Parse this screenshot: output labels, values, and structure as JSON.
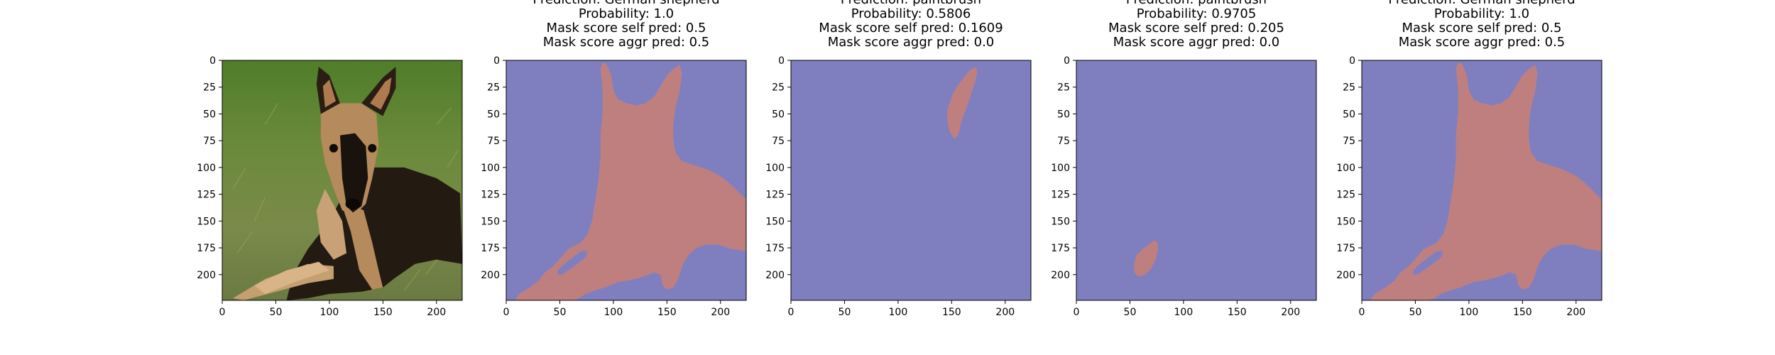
{
  "figure": {
    "background": "#ffffff",
    "mask_background_color": "#7f7fbf",
    "mask_object_color": "#bf7f7f"
  },
  "chart_data": [
    {
      "type": "image",
      "content": "photo",
      "image_description": "German shepherd dog lying on grass",
      "title_lines": [],
      "xlim": [
        0,
        224
      ],
      "ylim": [
        0,
        224
      ],
      "xticks": [
        0,
        50,
        100,
        150,
        200
      ],
      "yticks": [
        0,
        25,
        50,
        75,
        100,
        125,
        150,
        175,
        200
      ]
    },
    {
      "type": "heatmap",
      "content": "mask",
      "mask_shape": "dog",
      "title_lines": [
        "Prediction: German shepherd",
        "Probability: 1.0",
        "Mask score self pred: 0.5",
        "Mask score aggr pred: 0.5"
      ],
      "xlim": [
        0,
        224
      ],
      "ylim": [
        0,
        224
      ],
      "xticks": [
        0,
        50,
        100,
        150,
        200
      ],
      "yticks": [
        0,
        25,
        50,
        75,
        100,
        125,
        150,
        175,
        200
      ]
    },
    {
      "type": "heatmap",
      "content": "mask",
      "mask_shape": "ear",
      "title_lines": [
        "Prediction: paintbrush",
        "Probability: 0.5806",
        "Mask score self pred: 0.1609",
        "Mask score aggr pred: 0.0"
      ],
      "xlim": [
        0,
        224
      ],
      "ylim": [
        0,
        224
      ],
      "xticks": [
        0,
        50,
        100,
        150,
        200
      ],
      "yticks": [
        0,
        25,
        50,
        75,
        100,
        125,
        150,
        175,
        200
      ]
    },
    {
      "type": "heatmap",
      "content": "mask",
      "mask_shape": "paw",
      "title_lines": [
        "Prediction: paintbrush",
        "Probability: 0.9705",
        "Mask score self pred: 0.205",
        "Mask score aggr pred: 0.0"
      ],
      "xlim": [
        0,
        224
      ],
      "ylim": [
        0,
        224
      ],
      "xticks": [
        0,
        50,
        100,
        150,
        200
      ],
      "yticks": [
        0,
        25,
        50,
        75,
        100,
        125,
        150,
        175,
        200
      ]
    },
    {
      "type": "heatmap",
      "content": "mask",
      "mask_shape": "dog",
      "title_lines": [
        "Prediction: German shepherd",
        "Probability: 1.0",
        "Mask score self pred: 0.5",
        "Mask score aggr pred: 0.5"
      ],
      "xlim": [
        0,
        224
      ],
      "ylim": [
        0,
        224
      ],
      "xticks": [
        0,
        50,
        100,
        150,
        200
      ],
      "yticks": [
        0,
        25,
        50,
        75,
        100,
        125,
        150,
        175,
        200
      ]
    }
  ]
}
